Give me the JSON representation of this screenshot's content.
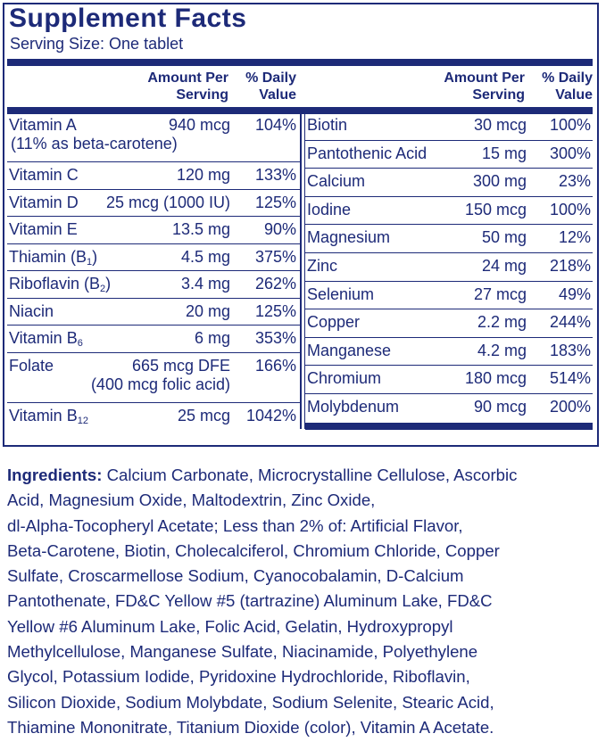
{
  "title": "Supplement Facts",
  "serving_size": "Serving Size: One tablet",
  "headers": {
    "amount_line1": "Amount Per",
    "amount_line2": "Serving",
    "dv_line1": "% Daily",
    "dv_line2": "Value"
  },
  "left_rows": [
    {
      "name": "Vitamin A",
      "amount": "940 mcg",
      "dv": "104%",
      "note": "(11% as beta-carotene)"
    },
    {
      "name": "Vitamin C",
      "amount": "120 mg",
      "dv": "133%"
    },
    {
      "name": "Vitamin D",
      "amount": "25 mcg (1000 IU)",
      "dv": "125%"
    },
    {
      "name": "Vitamin E",
      "amount": "13.5 mg",
      "dv": "90%"
    },
    {
      "name": "Thiamin (B",
      "sub": "1",
      "suffix": ")",
      "amount": "4.5 mg",
      "dv": "375%"
    },
    {
      "name": "Riboflavin (B",
      "sub": "2",
      "suffix": ")",
      "amount": "3.4 mg",
      "dv": "262%"
    },
    {
      "name": "Niacin",
      "amount": "20 mg",
      "dv": "125%"
    },
    {
      "name": "Vitamin B",
      "sub": "6",
      "suffix": "",
      "amount": "6 mg",
      "dv": "353%"
    },
    {
      "name": "Folate",
      "amount": "665 mcg DFE",
      "dv": "166%",
      "note": "(400 mcg folic acid)"
    },
    {
      "name": "Vitamin B",
      "sub": "12",
      "suffix": "",
      "amount": "25 mcg",
      "dv": "1042%"
    }
  ],
  "right_rows": [
    {
      "name": "Biotin",
      "amount": "30 mcg",
      "dv": "100%"
    },
    {
      "name": "Pantothenic Acid",
      "amount": "15 mg",
      "dv": "300%"
    },
    {
      "name": "Calcium",
      "amount": "300 mg",
      "dv": "23%"
    },
    {
      "name": "Iodine",
      "amount": "150 mcg",
      "dv": "100%"
    },
    {
      "name": "Magnesium",
      "amount": "50 mg",
      "dv": "12%"
    },
    {
      "name": "Zinc",
      "amount": "24 mg",
      "dv": "218%"
    },
    {
      "name": "Selenium",
      "amount": "27 mcg",
      "dv": "49%"
    },
    {
      "name": "Copper",
      "amount": "2.2 mg",
      "dv": "244%"
    },
    {
      "name": "Manganese",
      "amount": "4.2 mg",
      "dv": "183%"
    },
    {
      "name": "Chromium",
      "amount": "180 mcg",
      "dv": "514%"
    },
    {
      "name": "Molybdenum",
      "amount": "90 mcg",
      "dv": "200%"
    }
  ],
  "ingredients": {
    "label": "Ingredients:",
    "lines": [
      " Calcium Carbonate, Microcrystalline Cellulose, Ascorbic",
      "Acid, Magnesium Oxide, Maltodextrin, Zinc Oxide,",
      "dl-Alpha-Tocopheryl Acetate; Less than 2% of: Artificial Flavor,",
      "Beta-Carotene, Biotin, Cholecalciferol, Chromium Chloride, Copper",
      "Sulfate, Croscarmellose Sodium, Cyanocobalamin, D-Calcium",
      "Pantothenate, FD&C Yellow #5 (tartrazine) Aluminum Lake, FD&C",
      "Yellow #6 Aluminum Lake, Folic Acid, Gelatin, Hydroxypropyl",
      "Methylcellulose, Manganese Sulfate, Niacinamide, Polyethylene",
      "Glycol, Potassium Iodide, Pyridoxine Hydrochloride, Riboflavin,",
      "Silicon Dioxide, Sodium Molybdate, Sodium Selenite, Stearic Acid,",
      "Thiamine Mononitrate, Titanium Dioxide (color), Vitamin A Acetate."
    ]
  },
  "colors": {
    "ink": "#1d2a78",
    "background": "#ffffff"
  }
}
